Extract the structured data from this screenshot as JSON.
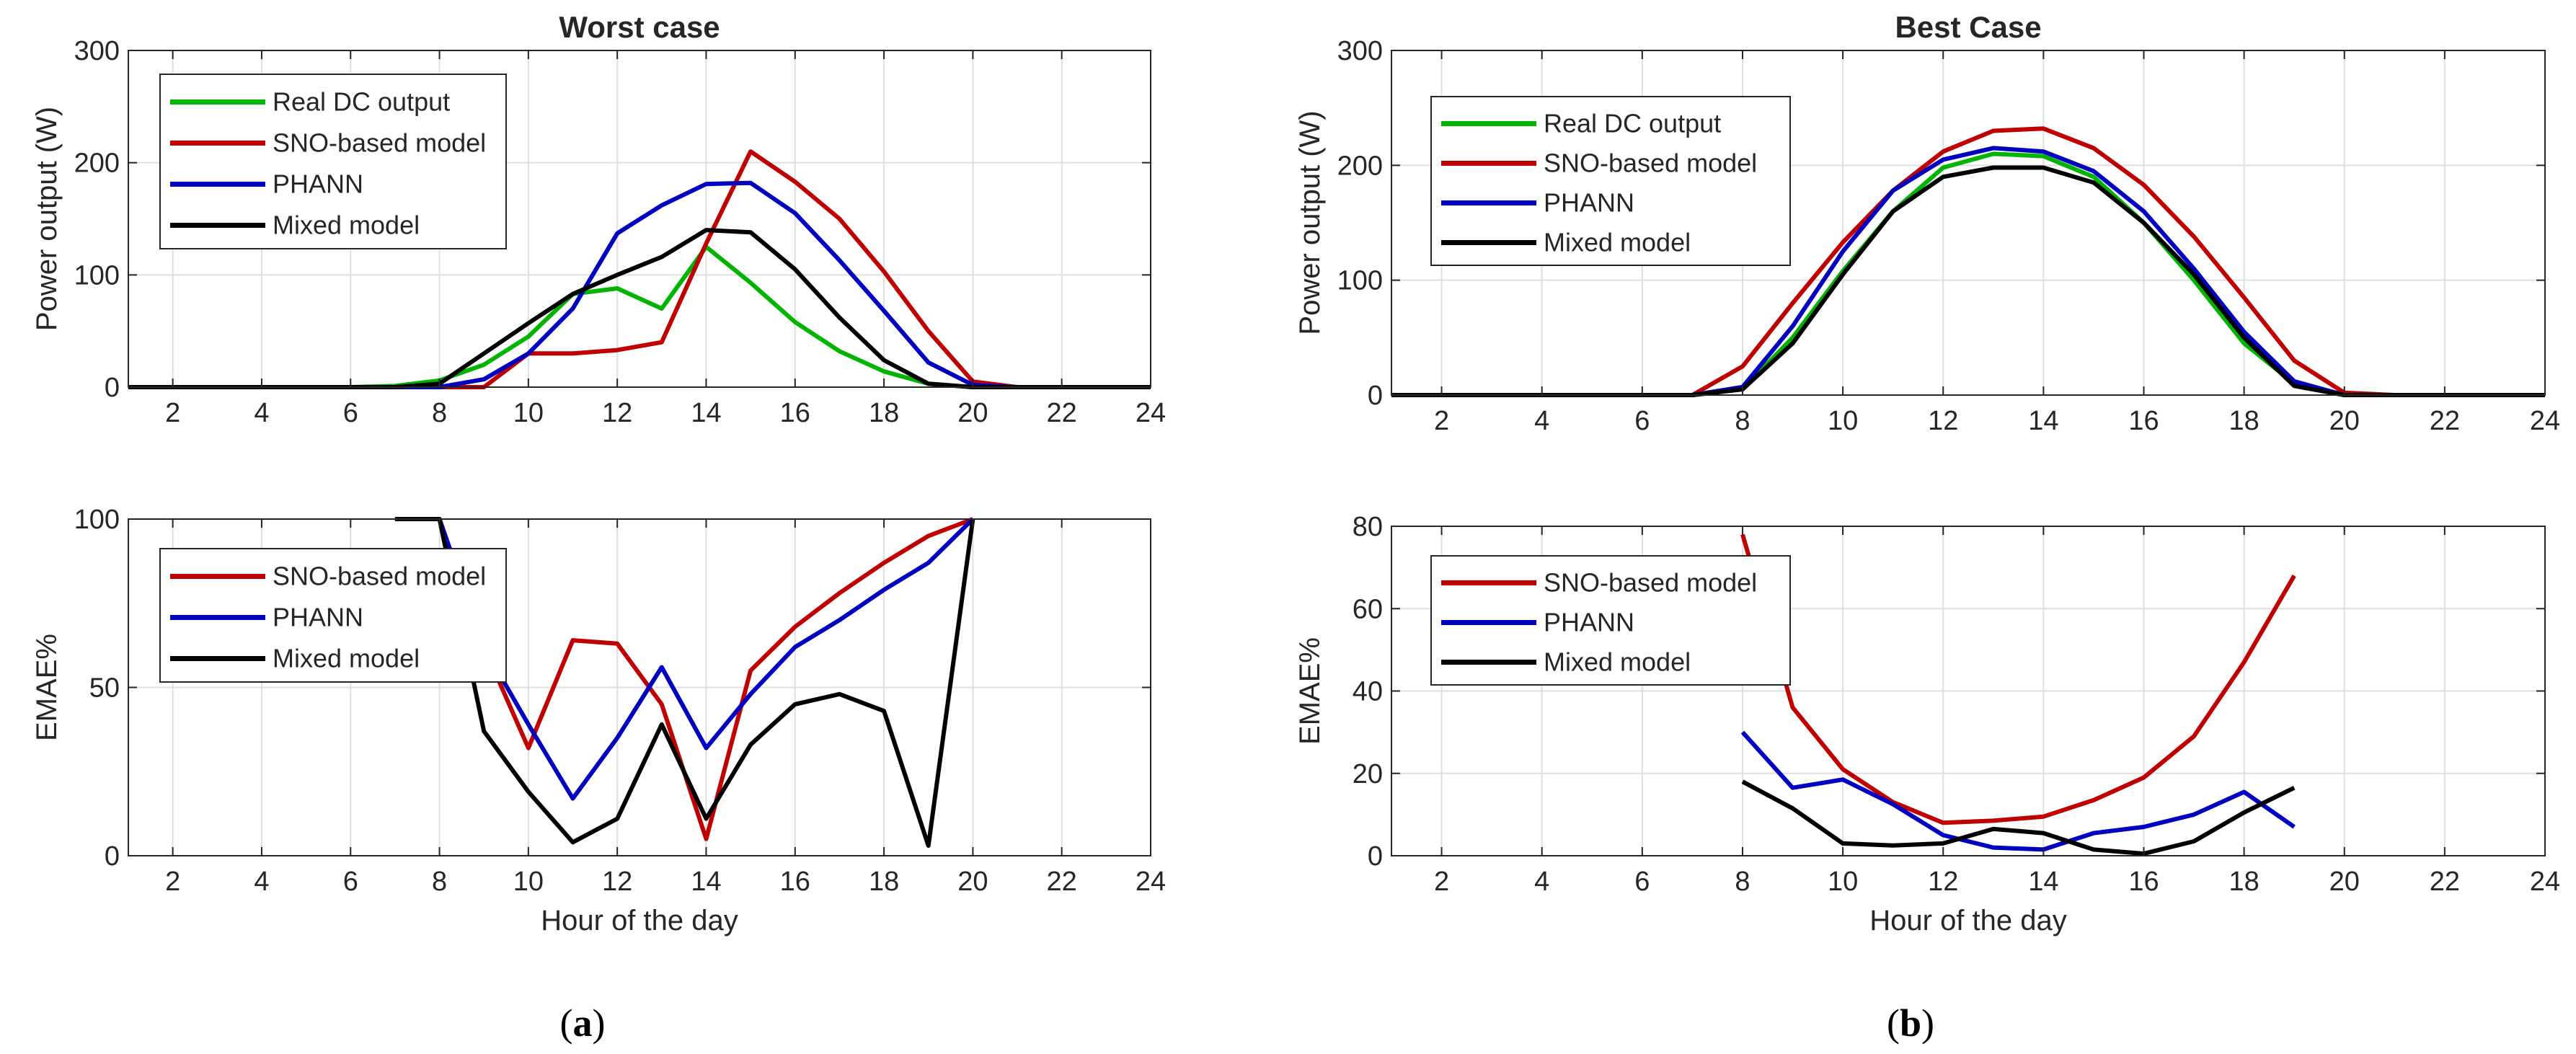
{
  "chart_data": [
    {
      "id": "a-top",
      "type": "line",
      "title": "Worst case",
      "xlabel": "",
      "ylabel": "Power output (W)",
      "xlim": [
        1,
        24
      ],
      "ylim": [
        0,
        300
      ],
      "xticks": [
        2,
        4,
        6,
        8,
        10,
        12,
        14,
        16,
        18,
        20,
        22,
        24
      ],
      "yticks": [
        0,
        100,
        200,
        300
      ],
      "grid": true,
      "legend_position": "top-left",
      "series": [
        {
          "name": "Real DC output",
          "color": "#00b400",
          "x": [
            1,
            2,
            3,
            4,
            5,
            6,
            7,
            8,
            9,
            10,
            11,
            12,
            13,
            14,
            15,
            16,
            17,
            18,
            19,
            20,
            21,
            22,
            23,
            24
          ],
          "y": [
            0,
            0,
            0,
            0,
            0,
            0,
            1,
            6,
            20,
            45,
            83,
            88,
            70,
            125,
            93,
            58,
            32,
            14,
            3,
            0,
            0,
            0,
            0,
            0
          ]
        },
        {
          "name": "SNO-based model",
          "color": "#c00000",
          "x": [
            1,
            2,
            3,
            4,
            5,
            6,
            7,
            8,
            9,
            10,
            11,
            12,
            13,
            14,
            15,
            16,
            17,
            18,
            19,
            20,
            21,
            22,
            23,
            24
          ],
          "y": [
            0,
            0,
            0,
            0,
            0,
            0,
            0,
            0,
            0,
            30,
            30,
            33,
            40,
            128,
            210,
            183,
            150,
            103,
            50,
            5,
            0,
            0,
            0,
            0
          ]
        },
        {
          "name": "PHANN",
          "color": "#0000c0",
          "x": [
            1,
            2,
            3,
            4,
            5,
            6,
            7,
            8,
            9,
            10,
            11,
            12,
            13,
            14,
            15,
            16,
            17,
            18,
            19,
            20,
            21,
            22,
            23,
            24
          ],
          "y": [
            0,
            0,
            0,
            0,
            0,
            0,
            0,
            0,
            7,
            30,
            70,
            137,
            162,
            181,
            182,
            155,
            113,
            68,
            22,
            2,
            0,
            0,
            0,
            0
          ]
        },
        {
          "name": "Mixed model",
          "color": "#000000",
          "x": [
            1,
            2,
            3,
            4,
            5,
            6,
            7,
            8,
            9,
            10,
            11,
            12,
            13,
            14,
            15,
            16,
            17,
            18,
            19,
            20,
            21,
            22,
            23,
            24
          ],
          "y": [
            0,
            0,
            0,
            0,
            0,
            0,
            0,
            3,
            30,
            57,
            83,
            100,
            116,
            140,
            138,
            105,
            62,
            24,
            3,
            0,
            0,
            0,
            0,
            0
          ]
        }
      ]
    },
    {
      "id": "a-bottom",
      "type": "line",
      "title": "",
      "xlabel": "Hour of the day",
      "ylabel": "EMAE%",
      "xlim": [
        1,
        24
      ],
      "ylim": [
        0,
        100
      ],
      "xticks": [
        2,
        4,
        6,
        8,
        10,
        12,
        14,
        16,
        18,
        20,
        22,
        24
      ],
      "yticks": [
        0,
        50,
        100
      ],
      "grid": true,
      "legend_position": "top-left",
      "series": [
        {
          "name": "SNO-based model",
          "color": "#c00000",
          "x": [
            7,
            8,
            9,
            10,
            11,
            12,
            13,
            14,
            15,
            16,
            17,
            18,
            19,
            20
          ],
          "y": [
            100,
            100,
            62,
            32,
            64,
            63,
            45,
            5,
            55,
            68,
            78,
            87,
            95,
            100
          ]
        },
        {
          "name": "PHANN",
          "color": "#0000c0",
          "x": [
            7,
            8,
            9,
            10,
            11,
            12,
            13,
            14,
            15,
            16,
            17,
            18,
            19,
            20
          ],
          "y": [
            100,
            100,
            62,
            39,
            17,
            35,
            56,
            32,
            48,
            62,
            70,
            79,
            87,
            100
          ]
        },
        {
          "name": "Mixed model",
          "color": "#000000",
          "x": [
            7,
            8,
            9,
            10,
            11,
            12,
            13,
            14,
            15,
            16,
            17,
            18,
            19,
            20
          ],
          "y": [
            100,
            100,
            37,
            19,
            4,
            11,
            39,
            11,
            33,
            45,
            48,
            43,
            3,
            100
          ]
        }
      ]
    },
    {
      "id": "b-top",
      "type": "line",
      "title": "Best Case",
      "xlabel": "",
      "ylabel": "Power output (W)",
      "xlim": [
        1,
        24
      ],
      "ylim": [
        0,
        300
      ],
      "xticks": [
        2,
        4,
        6,
        8,
        10,
        12,
        14,
        16,
        18,
        20,
        22,
        24
      ],
      "yticks": [
        0,
        100,
        200,
        300
      ],
      "grid": true,
      "legend_position": "top-left",
      "series": [
        {
          "name": "Real DC output",
          "color": "#00b400",
          "x": [
            1,
            2,
            3,
            4,
            5,
            6,
            7,
            8,
            9,
            10,
            11,
            12,
            13,
            14,
            15,
            16,
            17,
            18,
            19,
            20,
            21,
            22,
            23,
            24
          ],
          "y": [
            0,
            0,
            0,
            0,
            0,
            0,
            0,
            5,
            50,
            108,
            160,
            198,
            210,
            208,
            190,
            150,
            100,
            45,
            10,
            0,
            0,
            0,
            0,
            0
          ]
        },
        {
          "name": "SNO-based model",
          "color": "#c00000",
          "x": [
            1,
            2,
            3,
            4,
            5,
            6,
            7,
            8,
            9,
            10,
            11,
            12,
            13,
            14,
            15,
            16,
            17,
            18,
            19,
            20,
            21,
            22,
            23,
            24
          ],
          "y": [
            0,
            0,
            0,
            0,
            0,
            0,
            0,
            25,
            80,
            133,
            178,
            212,
            230,
            232,
            215,
            183,
            138,
            85,
            30,
            2,
            0,
            0,
            0,
            0
          ]
        },
        {
          "name": "PHANN",
          "color": "#0000c0",
          "x": [
            1,
            2,
            3,
            4,
            5,
            6,
            7,
            8,
            9,
            10,
            11,
            12,
            13,
            14,
            15,
            16,
            17,
            18,
            19,
            20,
            21,
            22,
            23,
            24
          ],
          "y": [
            0,
            0,
            0,
            0,
            0,
            0,
            0,
            7,
            60,
            125,
            178,
            205,
            215,
            212,
            195,
            160,
            110,
            55,
            12,
            0,
            0,
            0,
            0,
            0
          ]
        },
        {
          "name": "Mixed model",
          "color": "#000000",
          "x": [
            1,
            2,
            3,
            4,
            5,
            6,
            7,
            8,
            9,
            10,
            11,
            12,
            13,
            14,
            15,
            16,
            17,
            18,
            19,
            20,
            21,
            22,
            23,
            24
          ],
          "y": [
            0,
            0,
            0,
            0,
            0,
            0,
            0,
            5,
            45,
            105,
            160,
            190,
            198,
            198,
            185,
            150,
            105,
            50,
            8,
            0,
            0,
            0,
            0,
            0
          ]
        }
      ]
    },
    {
      "id": "b-bottom",
      "type": "line",
      "title": "",
      "xlabel": "Hour of the day",
      "ylabel": "EMAE%",
      "xlim": [
        1,
        24
      ],
      "ylim": [
        0,
        80
      ],
      "xticks": [
        2,
        4,
        6,
        8,
        10,
        12,
        14,
        16,
        18,
        20,
        22,
        24
      ],
      "yticks": [
        0,
        20,
        40,
        60,
        80
      ],
      "grid": true,
      "legend_position": "top-left",
      "series": [
        {
          "name": "SNO-based model",
          "color": "#c00000",
          "x": [
            8,
            9,
            10,
            11,
            12,
            13,
            14,
            15,
            16,
            17,
            18,
            19
          ],
          "y": [
            78,
            36,
            21,
            13,
            8,
            8.5,
            9.5,
            13.5,
            19,
            29,
            47,
            68
          ]
        },
        {
          "name": "PHANN",
          "color": "#0000c0",
          "x": [
            8,
            9,
            10,
            11,
            12,
            13,
            14,
            15,
            16,
            17,
            18,
            19
          ],
          "y": [
            30,
            16.5,
            18.5,
            12.5,
            5,
            2,
            1.5,
            5.5,
            7,
            10,
            15.5,
            7
          ]
        },
        {
          "name": "Mixed model",
          "color": "#000000",
          "x": [
            8,
            9,
            10,
            11,
            12,
            13,
            14,
            15,
            16,
            17,
            18,
            19
          ],
          "y": [
            18,
            11.5,
            3,
            2.5,
            3,
            6.5,
            5.5,
            1.5,
            0.5,
            3.5,
            10.5,
            16.5
          ]
        }
      ]
    }
  ],
  "captions": [
    {
      "id": "a",
      "text_open": "(",
      "letter": "a",
      "text_close": ")"
    },
    {
      "id": "b",
      "text_open": "(",
      "letter": "b",
      "text_close": ")"
    }
  ]
}
